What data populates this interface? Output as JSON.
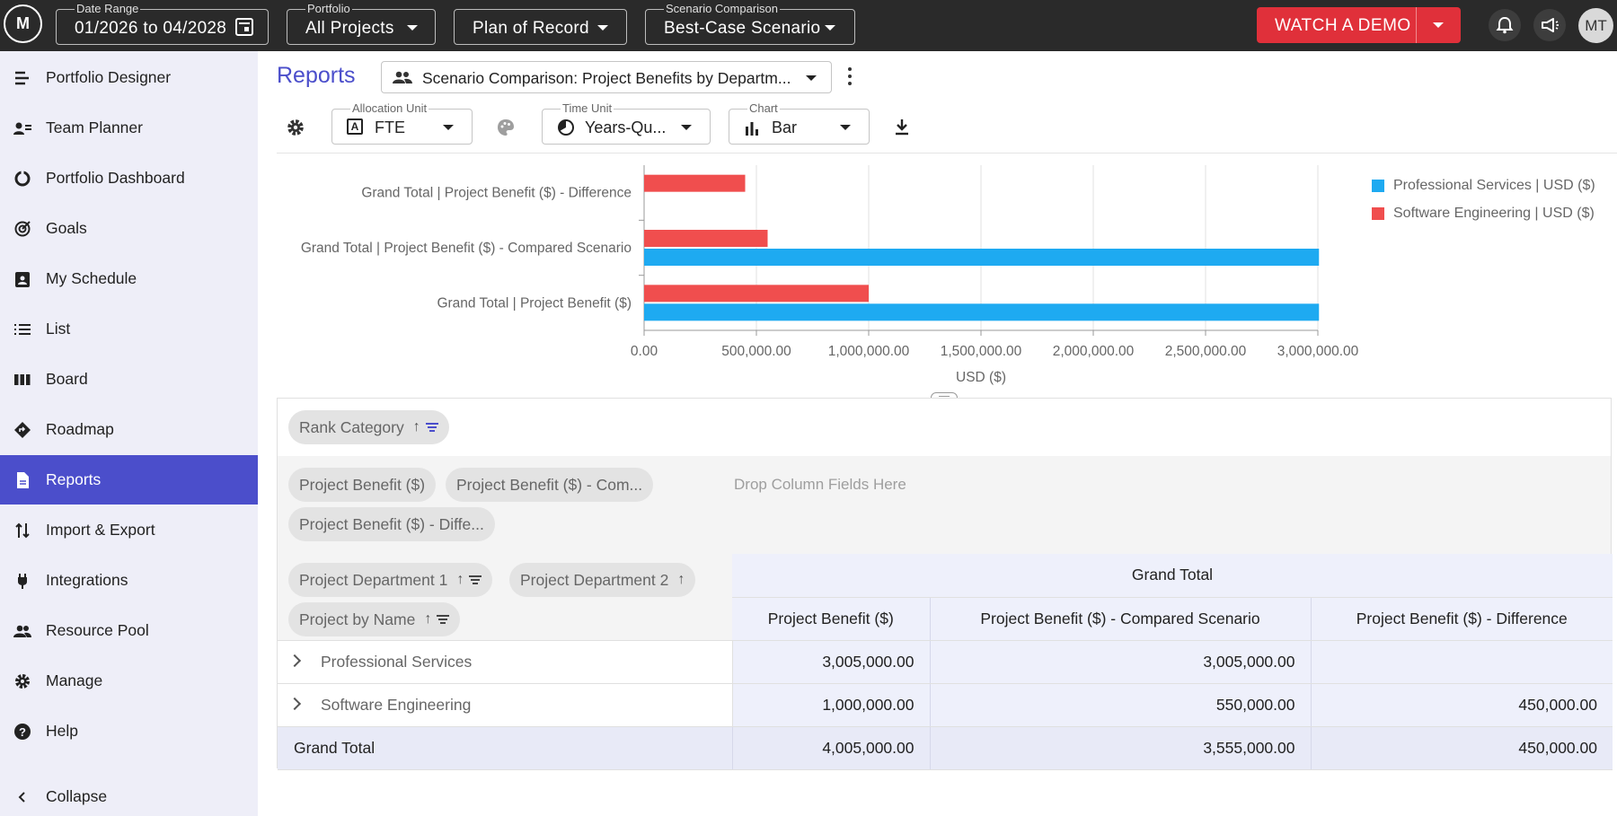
{
  "topbar": {
    "logo_text": "M",
    "date_range": {
      "label": "Date Range",
      "value": "01/2026 to 04/2028"
    },
    "portfolio": {
      "label": "Portfolio",
      "value": "All Projects"
    },
    "plan": {
      "value": "Plan of Record"
    },
    "scenario": {
      "label": "Scenario Comparison",
      "value": "Best-Case Scenario"
    },
    "demo_button": "WATCH A DEMO",
    "avatar": "MT"
  },
  "sidebar": {
    "items": [
      {
        "label": "Portfolio Designer",
        "icon": "portfolio-designer-icon"
      },
      {
        "label": "Team Planner",
        "icon": "team-planner-icon"
      },
      {
        "label": "Portfolio Dashboard",
        "icon": "dashboard-icon"
      },
      {
        "label": "Goals",
        "icon": "goals-icon"
      },
      {
        "label": "My Schedule",
        "icon": "schedule-icon"
      },
      {
        "label": "List",
        "icon": "list-icon"
      },
      {
        "label": "Board",
        "icon": "board-icon"
      },
      {
        "label": "Roadmap",
        "icon": "roadmap-icon"
      },
      {
        "label": "Reports",
        "icon": "reports-icon"
      },
      {
        "label": "Import & Export",
        "icon": "import-export-icon"
      },
      {
        "label": "Integrations",
        "icon": "plug-icon"
      },
      {
        "label": "Resource Pool",
        "icon": "people-icon"
      },
      {
        "label": "Manage",
        "icon": "gear-icon"
      },
      {
        "label": "Help",
        "icon": "help-icon"
      },
      {
        "label": "Collapse",
        "icon": "chevron-left-icon"
      }
    ],
    "active_index": 8
  },
  "header": {
    "title": "Reports",
    "report_select": "Scenario Comparison: Project Benefits by Departm..."
  },
  "controls": {
    "allocation_unit": {
      "label": "Allocation Unit",
      "value": "FTE"
    },
    "time_unit": {
      "label": "Time Unit",
      "value": "Years-Qu..."
    },
    "chart": {
      "label": "Chart",
      "value": "Bar"
    }
  },
  "colors": {
    "accent": "#4b4ecb",
    "blue_series": "#1eaaf1",
    "red_series": "#f04e4e",
    "demo": "#e0303a"
  },
  "chart_data": {
    "type": "bar",
    "orientation": "horizontal",
    "categories": [
      "Grand Total | Project Benefit ($) - Difference",
      "Grand Total | Project Benefit ($) - Compared Scenario",
      "Grand Total | Project Benefit ($)"
    ],
    "series": [
      {
        "name": "Professional Services | USD ($)",
        "color": "#1eaaf1",
        "values": [
          0,
          3005000,
          3005000
        ]
      },
      {
        "name": "Software Engineering | USD ($)",
        "color": "#f04e4e",
        "values": [
          450000,
          550000,
          1000000
        ]
      }
    ],
    "xlabel": "USD ($)",
    "xlim": [
      0,
      3000000
    ],
    "xticks": [
      "0.00",
      "500,000.00",
      "1,000,000.00",
      "1,500,000.00",
      "2,000,000.00",
      "2,500,000.00",
      "3,000,000.00"
    ],
    "grid": true,
    "legend": "top-right"
  },
  "pivot": {
    "filter_fields": [
      {
        "label": "Rank Category"
      }
    ],
    "value_fields": [
      {
        "label": "Project Benefit ($)"
      },
      {
        "label": "Project Benefit ($) - Com..."
      },
      {
        "label": "Project Benefit ($) - Diffe..."
      }
    ],
    "column_drop_hint": "Drop Column Fields Here",
    "row_fields": [
      {
        "label": "Project Department 1"
      },
      {
        "label": "Project Department 2"
      },
      {
        "label": "Project by Name"
      }
    ],
    "column_group": "Grand Total",
    "columns": [
      "Project Benefit ($)",
      "Project Benefit ($) - Compared Scenario",
      "Project Benefit ($) - Difference"
    ],
    "rows": [
      {
        "label": "Professional Services",
        "values": [
          "3,005,000.00",
          "3,005,000.00",
          ""
        ]
      },
      {
        "label": "Software Engineering",
        "values": [
          "1,000,000.00",
          "550,000.00",
          "450,000.00"
        ]
      }
    ],
    "grand_total": {
      "label": "Grand Total",
      "values": [
        "4,005,000.00",
        "3,555,000.00",
        "450,000.00"
      ]
    }
  }
}
